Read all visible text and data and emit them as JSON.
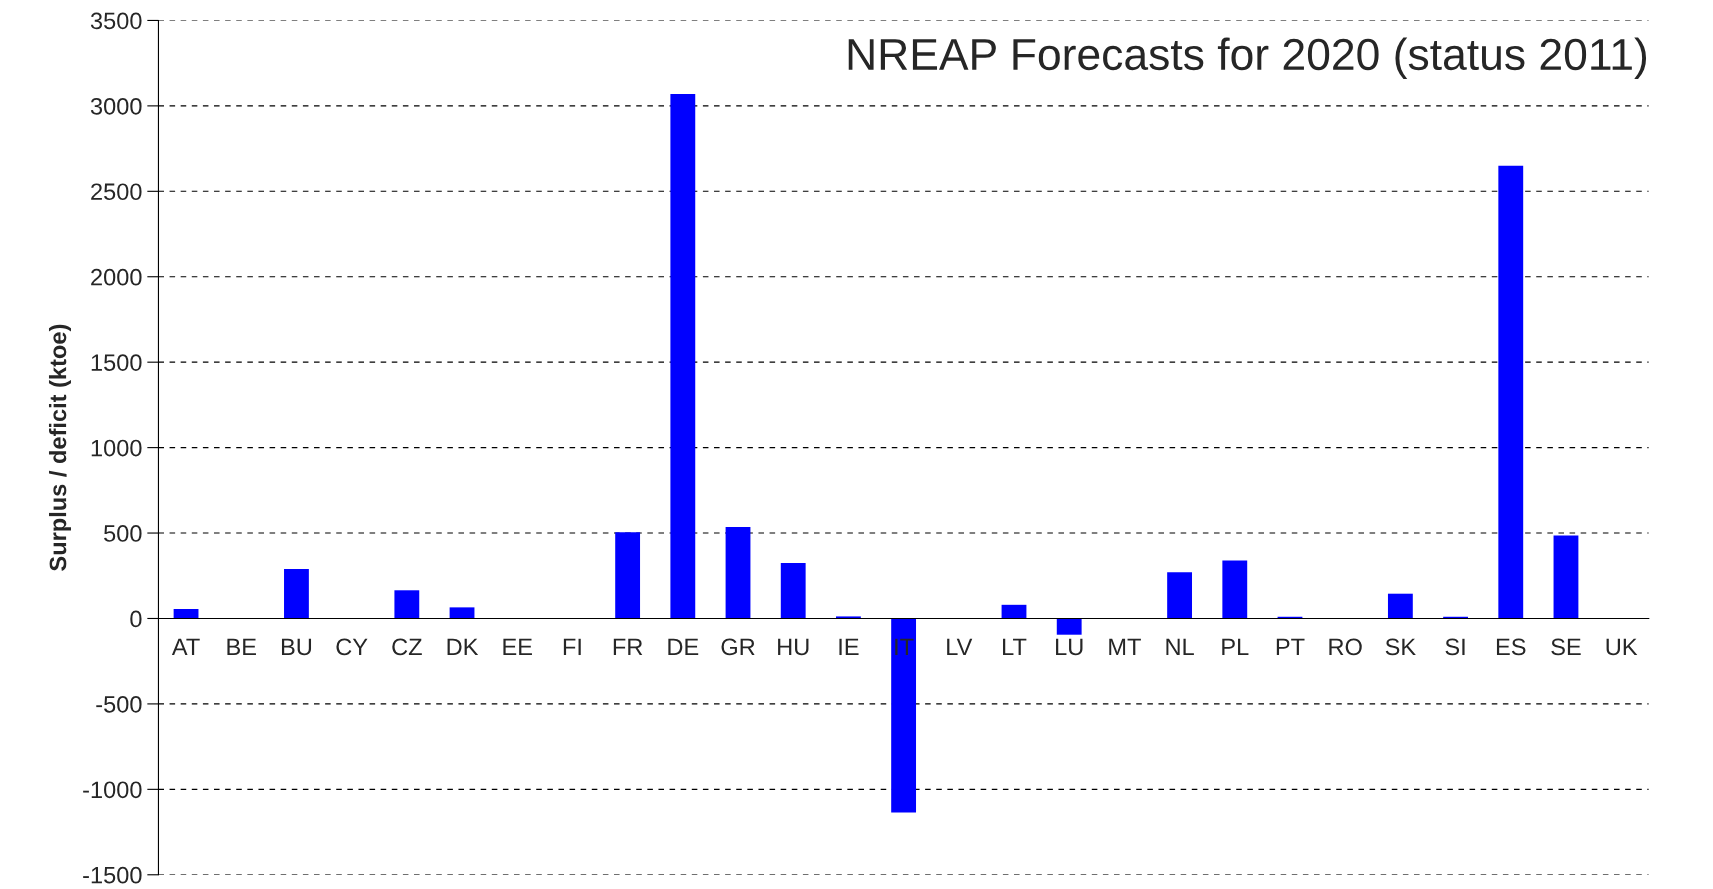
{
  "chart_data": {
    "type": "bar",
    "title": "NREAP Forecasts for 2020 (status 2011)",
    "ylabel": "Surplus / deficit (ktoe)",
    "categories": [
      "AT",
      "BE",
      "BU",
      "CY",
      "CZ",
      "DK",
      "EE",
      "FI",
      "FR",
      "DE",
      "GR",
      "HU",
      "IE",
      "IT",
      "LV",
      "LT",
      "LU",
      "MT",
      "NL",
      "PL",
      "PT",
      "RO",
      "SK",
      "SI",
      "ES",
      "SE",
      "UK"
    ],
    "values": [
      55,
      0,
      290,
      0,
      165,
      65,
      0,
      0,
      505,
      3070,
      535,
      325,
      12,
      -1135,
      0,
      80,
      -95,
      0,
      270,
      340,
      10,
      0,
      145,
      10,
      2650,
      485,
      0
    ],
    "color": "#0000ff",
    "ylim": [
      -1500,
      3500
    ],
    "yticks": [
      -1500,
      -1000,
      -500,
      0,
      500,
      1000,
      1500,
      2000,
      2500,
      3000,
      3500
    ],
    "grid": "y",
    "legend": false
  }
}
